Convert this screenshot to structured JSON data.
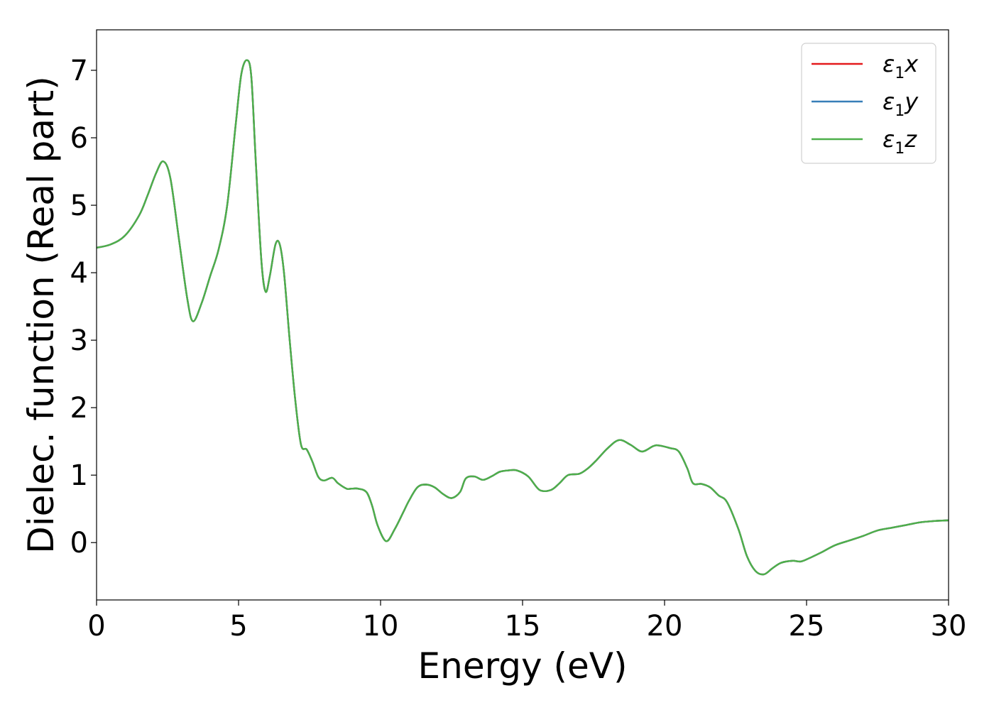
{
  "chart_data": {
    "type": "line",
    "xlabel": "Energy (eV)",
    "ylabel": "Dielec. function (Real part)",
    "xlim": [
      0,
      30
    ],
    "ylim": [
      -0.85,
      7.6
    ],
    "xticks": [
      0,
      5,
      10,
      15,
      20,
      25,
      30
    ],
    "yticks": [
      0,
      1,
      2,
      3,
      4,
      5,
      6,
      7
    ],
    "grid": false,
    "legend": "top-right",
    "series": [
      {
        "name": "ε1x",
        "symbol": "ε",
        "sub": "1",
        "axis": "x",
        "color": "#e41a1c"
      },
      {
        "name": "ε1y",
        "symbol": "ε",
        "sub": "1",
        "axis": "y",
        "color": "#377eb8"
      },
      {
        "name": "ε1z",
        "symbol": "ε",
        "sub": "1",
        "axis": "z",
        "color": "#4daf4a"
      }
    ],
    "x": [
      0,
      0.5,
      1,
      1.5,
      1.8,
      2.1,
      2.35,
      2.6,
      2.9,
      3.2,
      3.4,
      3.7,
      4.0,
      4.3,
      4.6,
      4.9,
      5.1,
      5.3,
      5.45,
      5.6,
      5.8,
      5.95,
      6.1,
      6.3,
      6.45,
      6.6,
      6.8,
      7.0,
      7.2,
      7.4,
      7.6,
      7.8,
      8.0,
      8.3,
      8.5,
      8.8,
      9.0,
      9.2,
      9.5,
      9.7,
      9.9,
      10.2,
      10.5,
      10.8,
      11.0,
      11.3,
      11.6,
      11.9,
      12.2,
      12.5,
      12.8,
      13.0,
      13.3,
      13.6,
      13.9,
      14.2,
      14.5,
      14.8,
      15.2,
      15.6,
      16.0,
      16.3,
      16.6,
      17.0,
      17.3,
      17.6,
      18.0,
      18.4,
      18.8,
      19.2,
      19.6,
      19.8,
      20.2,
      20.5,
      20.8,
      21.0,
      21.3,
      21.6,
      21.9,
      22.2,
      22.6,
      22.9,
      23.2,
      23.5,
      23.8,
      24.1,
      24.5,
      24.8,
      25.1,
      25.5,
      26.0,
      26.5,
      27.0,
      27.5,
      28.0,
      28.5,
      29.0,
      29.5,
      30
    ],
    "values": [
      4.37,
      4.42,
      4.55,
      4.85,
      5.15,
      5.48,
      5.65,
      5.4,
      4.5,
      3.6,
      3.28,
      3.55,
      3.95,
      4.35,
      5.0,
      6.2,
      6.95,
      7.15,
      6.9,
      5.7,
      4.2,
      3.72,
      3.95,
      4.42,
      4.42,
      4.0,
      3.0,
      2.1,
      1.45,
      1.38,
      1.2,
      0.98,
      0.92,
      0.96,
      0.88,
      0.8,
      0.8,
      0.8,
      0.75,
      0.55,
      0.25,
      0.02,
      0.2,
      0.45,
      0.62,
      0.82,
      0.86,
      0.82,
      0.72,
      0.66,
      0.75,
      0.95,
      0.98,
      0.93,
      0.98,
      1.05,
      1.07,
      1.07,
      0.98,
      0.78,
      0.78,
      0.88,
      1.0,
      1.02,
      1.1,
      1.22,
      1.4,
      1.52,
      1.45,
      1.35,
      1.43,
      1.44,
      1.4,
      1.35,
      1.1,
      0.88,
      0.87,
      0.82,
      0.7,
      0.6,
      0.2,
      -0.2,
      -0.42,
      -0.47,
      -0.38,
      -0.3,
      -0.27,
      -0.28,
      -0.23,
      -0.15,
      -0.04,
      0.03,
      0.1,
      0.18,
      0.22,
      0.26,
      0.3,
      0.32,
      0.33
    ]
  }
}
